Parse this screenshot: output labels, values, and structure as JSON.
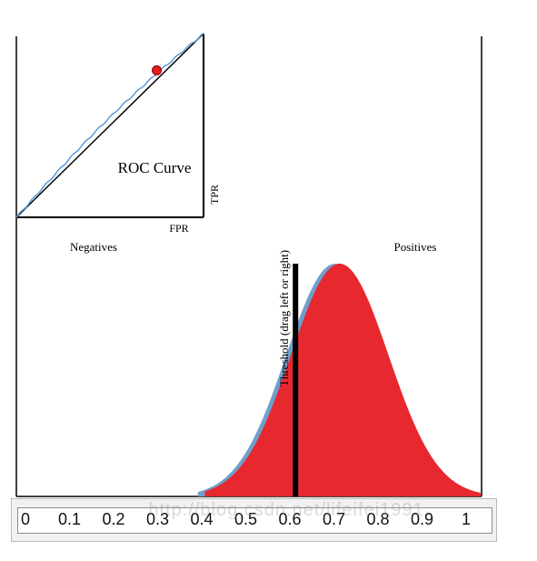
{
  "chart_data": {
    "type": "area",
    "labels": {
      "negatives": "Negatives",
      "positives": "Positives",
      "threshold": "Threshold (drag left or right)"
    },
    "x_ticks": [
      "0",
      "0.1",
      "0.2",
      "0.3",
      "0.4",
      "0.5",
      "0.6",
      "0.7",
      "0.8",
      "0.9",
      "1"
    ],
    "xlim": [
      0,
      1
    ],
    "threshold": 0.6,
    "series": [
      {
        "name": "Negatives",
        "color": "#6f9fcc",
        "mean": 0.685,
        "sd": 0.105,
        "cutoff": 0.39
      },
      {
        "name": "Positives",
        "color": "#e8282f",
        "mean": 0.695,
        "sd": 0.105,
        "cutoff": 0.405
      }
    ],
    "roc": {
      "title": "ROC Curve",
      "xlabel": "FPR",
      "ylabel": "TPR",
      "operating_point": {
        "fpr": 0.75,
        "tpr": 0.8
      },
      "curve_color": "#5b9bd5",
      "point_color": "#e41a1c"
    }
  },
  "watermark": "http://blog.csdn.net/lifeifei1991"
}
